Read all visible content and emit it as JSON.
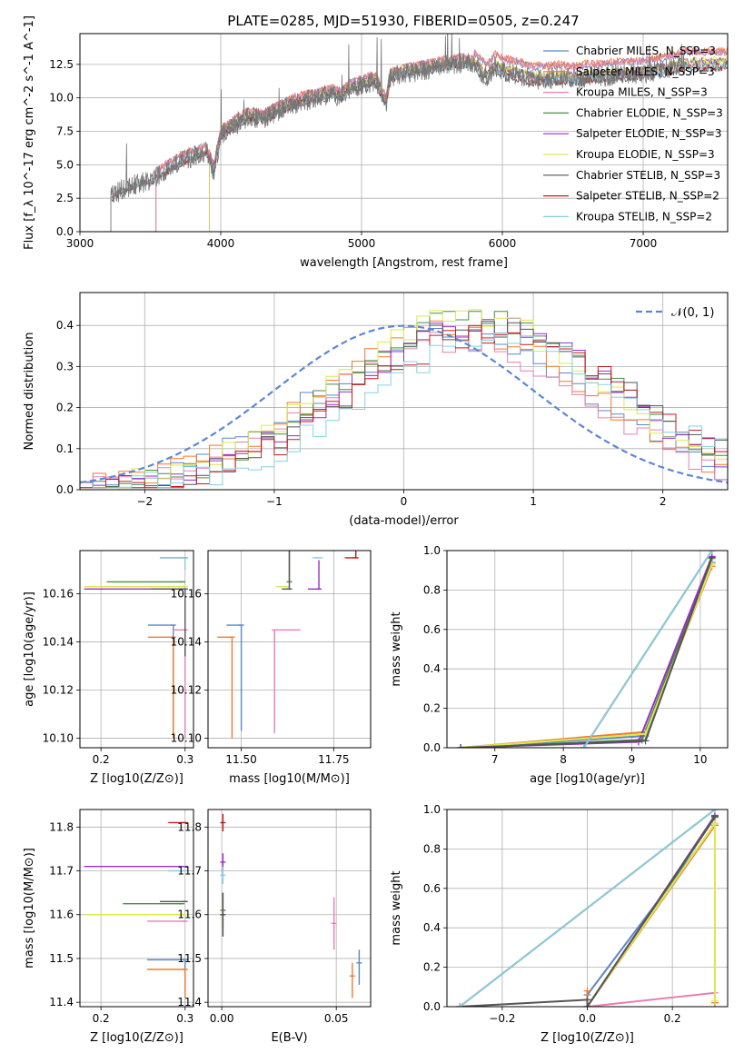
{
  "figure_title": "PLATE=0285, MJD=51930, FIBERID=0505, z=0.247",
  "colors": {
    "Chabrier MILES": "#5b87c6",
    "Salpeter MILES": "#ef7a2c",
    "Kroupa MILES": "#e87fb4",
    "Chabrier ELODIE": "#4a8a47",
    "Salpeter ELODIE": "#9a2ec4",
    "Kroupa ELODIE": "#dde84f",
    "Chabrier STELIB": "#555555",
    "Salpeter STELIB": "#c41a1a",
    "Kroupa STELIB": "#86d0e0",
    "normal_curve": "#5b87d6",
    "grid": "#b0b0b0"
  },
  "chart_data": [
    {
      "id": "spectrum",
      "type": "line",
      "title": "PLATE=0285, MJD=51930, FIBERID=0505, z=0.247",
      "xlabel": "wavelength [Angstrom, rest frame]",
      "ylabel": "Flux [f_λ 10^-17 erg cm^-2 s^-1 A^-1]",
      "xlim": [
        3000,
        7600
      ],
      "ylim": [
        0,
        14.8
      ],
      "xticks": [
        3000,
        4000,
        5000,
        6000,
        7000
      ],
      "yticks": [
        0.0,
        2.5,
        5.0,
        7.5,
        10.0,
        12.5
      ],
      "legend_position": "top-right",
      "legend": [
        "Chabrier MILES, N_SSP=3",
        "Salpeter MILES, N_SSP=3",
        "Kroupa MILES, N_SSP=3",
        "Chabrier ELODIE, N_SSP=3",
        "Salpeter ELODIE, N_SSP=3",
        "Kroupa ELODIE, N_SSP=3",
        "Chabrier STELIB, N_SSP=3",
        "Salpeter STELIB, N_SSP=2",
        "Kroupa STELIB, N_SSP=2"
      ],
      "observed_spectrum_anchor_points": {
        "x": [
          3220,
          3300,
          3400,
          3500,
          3600,
          3700,
          3800,
          3900,
          3950,
          4000,
          4100,
          4200,
          4300,
          4400,
          4500,
          4600,
          4700,
          4800,
          4861,
          4900,
          5000,
          5100,
          5175,
          5200,
          5300,
          5400,
          5500,
          5600,
          5700,
          5800,
          5890,
          5950,
          6000,
          6100,
          6200,
          6300,
          6400,
          6563,
          6600,
          6700,
          6800,
          6900,
          7000,
          7100,
          7200,
          7300
        ],
        "y": [
          2.6,
          3.2,
          3.6,
          3.8,
          4.5,
          5.2,
          5.6,
          6.0,
          4.5,
          7.2,
          8.0,
          8.6,
          8.4,
          9.0,
          9.5,
          9.8,
          10.0,
          10.3,
          10.0,
          10.6,
          11.0,
          11.3,
          9.5,
          11.5,
          11.8,
          12.0,
          12.2,
          12.4,
          12.6,
          12.5,
          11.5,
          12.3,
          12.0,
          11.8,
          11.4,
          11.4,
          11.5,
          11.4,
          11.6,
          11.6,
          11.7,
          11.8,
          11.9,
          12.0,
          12.2,
          12.5
        ]
      },
      "model_offsets": [
        0.9,
        1.0,
        0.95,
        0.2,
        0.25,
        0.3,
        -0.3,
        -0.2,
        -0.15
      ],
      "model_start_wavelengths": [
        3540,
        3540,
        3540,
        3920,
        3920,
        3920,
        3220,
        3220,
        3220
      ]
    },
    {
      "id": "residuals",
      "type": "histogram",
      "xlabel": "(data-model)/error",
      "ylabel": "Normed distribution",
      "xlim": [
        -2.5,
        2.5
      ],
      "ylim": [
        0,
        0.48
      ],
      "xticks": [
        -2,
        -1,
        0,
        1,
        2
      ],
      "yticks": [
        0.0,
        0.1,
        0.2,
        0.3,
        0.4
      ],
      "legend_position": "top-right",
      "normal_curve_label": "𝒩(0, 1)",
      "bin_width": 0.1,
      "bin_start": -2.5,
      "histogram_means": [
        0.35,
        0.4,
        0.38,
        0.55,
        0.6,
        0.5,
        0.65,
        0.7,
        0.75
      ],
      "histogram_sigma": 1.05,
      "histogram_peak": [
        0.37,
        0.39,
        0.36,
        0.42,
        0.4,
        0.42,
        0.4,
        0.38,
        0.36
      ]
    },
    {
      "id": "age_vs_Z",
      "type": "scatter",
      "xlabel": "Z [log10(Z/Z⊙)]",
      "ylabel": "age [log10(age/yr)]",
      "xlim": [
        0.175,
        0.31
      ],
      "ylim": [
        10.096,
        10.178
      ],
      "xticks": [
        0.2,
        0.3
      ],
      "yticks": [
        10.1,
        10.12,
        10.14,
        10.16
      ],
      "points": [
        {
          "x": 0.286,
          "y": 10.147,
          "xerr": [
            0.03,
            0.0
          ],
          "yerr": [
            0.047,
            0.0
          ]
        },
        {
          "x": 0.286,
          "y": 10.142,
          "xerr": [
            0.03,
            0.0
          ],
          "yerr": [
            0.042,
            0.0
          ]
        },
        {
          "x": 0.3,
          "y": 10.145,
          "xerr": [
            0.015,
            0.0
          ],
          "yerr": [
            0.045,
            0.0
          ]
        },
        {
          "x": 0.297,
          "y": 10.165,
          "xerr": [
            0.09,
            0.0
          ],
          "yerr": [
            0.0,
            0.0
          ]
        },
        {
          "x": 0.3,
          "y": 10.162,
          "xerr": [
            0.12,
            0.0
          ],
          "yerr": [
            0.0,
            0.0
          ]
        },
        {
          "x": 0.3,
          "y": 10.163,
          "xerr": [
            0.12,
            0.0
          ],
          "yerr": [
            0.0,
            0.0
          ]
        },
        {
          "x": 0.3,
          "y": 10.162,
          "xerr": [
            0.04,
            0.0
          ],
          "yerr": [
            0.028,
            0.0
          ]
        },
        {
          "x": 0.3,
          "y": 10.175,
          "xerr": [
            0.03,
            0.0
          ],
          "yerr": [
            0.0,
            0.0
          ]
        },
        {
          "x": 0.3,
          "y": 10.175,
          "xerr": [
            0.03,
            0.0
          ],
          "yerr": [
            0.005,
            0.0
          ]
        }
      ]
    },
    {
      "id": "age_vs_mass",
      "type": "scatter",
      "xlabel": "mass [log10(M/M⊙)]",
      "ylabel": "",
      "xlim": [
        11.41,
        11.85
      ],
      "ylim": [
        10.096,
        10.178
      ],
      "xticks": [
        11.5,
        11.75
      ],
      "yticks": [
        10.1,
        10.12,
        10.14,
        10.16
      ],
      "points": [
        {
          "x": 11.5,
          "y": 10.147,
          "xerr": [
            0.04,
            0.0
          ],
          "yerr": [
            0.044,
            0.0
          ]
        },
        {
          "x": 11.475,
          "y": 10.142,
          "xerr": [
            0.04,
            0.0
          ],
          "yerr": [
            0.042,
            0.0
          ]
        },
        {
          "x": 11.59,
          "y": 10.145,
          "xerr": [
            0.0,
            0.07
          ],
          "yerr": [
            0.043,
            0.0
          ]
        },
        {
          "x": 11.63,
          "y": 10.165,
          "xerr": [
            0.0,
            0.0
          ],
          "yerr": [
            0.0,
            0.031
          ]
        },
        {
          "x": 11.71,
          "y": 10.162,
          "xerr": [
            0.03,
            0.0
          ],
          "yerr": [
            0.0,
            0.012
          ]
        },
        {
          "x": 11.6,
          "y": 10.163,
          "xerr": [
            0.0,
            0.03
          ],
          "yerr": [
            0.0,
            0.0
          ]
        },
        {
          "x": 11.63,
          "y": 10.162,
          "xerr": [
            0.02,
            0.0
          ],
          "yerr": [
            0.0,
            0.025
          ]
        },
        {
          "x": 11.81,
          "y": 10.175,
          "xerr": [
            0.03,
            0.0
          ],
          "yerr": [
            0.0,
            0.012
          ]
        },
        {
          "x": 11.7,
          "y": 10.175,
          "xerr": [
            0.0,
            0.02
          ],
          "yerr": [
            0.0,
            0.0
          ]
        }
      ]
    },
    {
      "id": "mass_weight_vs_age",
      "type": "line",
      "xlabel": "age [log10(age/yr)]",
      "ylabel": "mass weight",
      "xlim": [
        6.3,
        10.4
      ],
      "ylim": [
        0,
        1.0
      ],
      "xticks": [
        7,
        8,
        9,
        10
      ],
      "yticks": [
        0.0,
        0.2,
        0.4,
        0.6,
        0.8,
        1.0
      ],
      "series": [
        {
          "x": [
            6.5,
            9.2,
            10.17
          ],
          "y": [
            0.0,
            0.06,
            0.94
          ]
        },
        {
          "x": [
            6.5,
            9.2,
            10.17
          ],
          "y": [
            0.0,
            0.08,
            0.92
          ]
        },
        {
          "x": [
            6.5,
            9.2,
            10.17
          ],
          "y": [
            0.0,
            0.07,
            0.93
          ]
        },
        {
          "x": [
            6.5,
            9.15,
            10.17
          ],
          "y": [
            0.0,
            0.04,
            0.96
          ]
        },
        {
          "x": [
            6.5,
            9.1,
            10.17
          ],
          "y": [
            0.0,
            0.03,
            0.97
          ]
        },
        {
          "x": [
            6.5,
            9.2,
            10.17
          ],
          "y": [
            0.0,
            0.07,
            0.93
          ]
        },
        {
          "x": [
            6.5,
            9.2,
            10.17
          ],
          "y": [
            0.0,
            0.035,
            0.965
          ]
        },
        {
          "x": [
            8.3,
            10.17
          ],
          "y": [
            0.0,
            1.0
          ]
        },
        {
          "x": [
            8.3,
            10.17
          ],
          "y": [
            0.0,
            1.0
          ]
        }
      ]
    },
    {
      "id": "mass_vs_Z",
      "type": "scatter",
      "xlabel": "Z [log10(Z/Z⊙)]",
      "ylabel": "mass [log10(M/M⊙)]",
      "xlim": [
        0.175,
        0.31
      ],
      "ylim": [
        11.39,
        11.84
      ],
      "xticks": [
        0.2,
        0.3
      ],
      "yticks": [
        11.4,
        11.5,
        11.6,
        11.7,
        11.8
      ],
      "points": [
        {
          "x": 0.3,
          "y": 11.497,
          "xerr": [
            0.045,
            0.0
          ],
          "yerr": [
            0.06,
            0.0
          ]
        },
        {
          "x": 0.3,
          "y": 11.475,
          "xerr": [
            0.045,
            0.0
          ],
          "yerr": [
            0.065,
            0.0
          ]
        },
        {
          "x": 0.3,
          "y": 11.585,
          "xerr": [
            0.045,
            0.0
          ],
          "yerr": [
            0.0,
            0.0
          ]
        },
        {
          "x": 0.296,
          "y": 11.625,
          "xerr": [
            0.07,
            0.0
          ],
          "yerr": [
            0.0,
            0.0
          ]
        },
        {
          "x": 0.3,
          "y": 11.71,
          "xerr": [
            0.12,
            0.0
          ],
          "yerr": [
            0.0,
            0.0
          ]
        },
        {
          "x": 0.3,
          "y": 11.6,
          "xerr": [
            0.12,
            0.0
          ],
          "yerr": [
            0.0,
            0.0
          ]
        },
        {
          "x": 0.3,
          "y": 11.63,
          "xerr": [
            0.03,
            0.0
          ],
          "yerr": [
            0.0,
            0.0
          ]
        },
        {
          "x": 0.3,
          "y": 11.81,
          "xerr": [
            0.02,
            0.0
          ],
          "yerr": [
            0.0,
            0.0
          ]
        },
        {
          "x": 0.3,
          "y": 11.7,
          "xerr": [
            0.02,
            0.0
          ],
          "yerr": [
            0.0,
            0.0
          ]
        }
      ]
    },
    {
      "id": "mass_vs_ebv",
      "type": "scatter",
      "xlabel": "E(B-V)",
      "ylabel": "",
      "xlim": [
        -0.006,
        0.065
      ],
      "ylim": [
        11.39,
        11.84
      ],
      "xticks": [
        0.0,
        0.05
      ],
      "yticks": [
        11.4,
        11.5,
        11.6,
        11.7,
        11.8
      ],
      "points": [
        {
          "x": 0.06,
          "y": 11.49,
          "yerr": [
            0.05,
            0.03
          ]
        },
        {
          "x": 0.057,
          "y": 11.46,
          "yerr": [
            0.05,
            0.03
          ]
        },
        {
          "x": 0.049,
          "y": 11.58,
          "yerr": [
            0.06,
            0.06
          ]
        },
        {
          "x": 0.0005,
          "y": 11.61,
          "yerr": [
            0.04,
            0.04
          ]
        },
        {
          "x": 0.0005,
          "y": 11.72,
          "yerr": [
            0.02,
            0.02
          ]
        },
        {
          "x": 0.0005,
          "y": 11.6,
          "yerr": [
            0.02,
            0.02
          ]
        },
        {
          "x": 0.0005,
          "y": 11.6,
          "yerr": [
            0.05,
            0.05
          ]
        },
        {
          "x": 0.0005,
          "y": 11.81,
          "yerr": [
            0.02,
            0.02
          ]
        },
        {
          "x": 0.0005,
          "y": 11.69,
          "yerr": [
            0.02,
            0.02
          ]
        }
      ]
    },
    {
      "id": "mass_weight_vs_Z",
      "type": "line",
      "xlabel": "Z [log10(Z/Z⊙)]",
      "ylabel": "mass weight",
      "xlim": [
        -0.33,
        0.33
      ],
      "ylim": [
        0,
        1.0
      ],
      "xticks": [
        -0.2,
        0.0,
        0.2
      ],
      "yticks": [
        0.0,
        0.2,
        0.4,
        0.6,
        0.8,
        1.0
      ],
      "series": [
        {
          "x": [
            0.0,
            0.3,
            0.3
          ],
          "y": [
            0.06,
            0.92,
            0.02
          ]
        },
        {
          "x": [
            0.0,
            0.0,
            0.3,
            0.3
          ],
          "y": [
            0.08,
            0.0,
            0.92,
            0.02
          ]
        },
        {
          "x": [
            0.0,
            0.3,
            0.3
          ],
          "y": [
            0.0,
            0.07,
            0.93
          ]
        },
        {
          "x": [
            0.0,
            0.3
          ],
          "y": [
            0.0,
            0.96
          ]
        },
        {
          "x": [
            0.0,
            0.3
          ],
          "y": [
            0.0,
            0.97
          ]
        },
        {
          "x": [
            0.0,
            0.3,
            0.3
          ],
          "y": [
            0.0,
            0.93,
            0.03
          ]
        },
        {
          "x": [
            -0.3,
            0.0,
            0.0,
            0.3
          ],
          "y": [
            0.0,
            0.035,
            0.0,
            0.965
          ]
        },
        {
          "x": [
            -0.3,
            0.3
          ],
          "y": [
            0.0,
            1.0
          ]
        },
        {
          "x": [
            -0.3,
            0.3
          ],
          "y": [
            0.0,
            1.0
          ]
        }
      ]
    }
  ]
}
